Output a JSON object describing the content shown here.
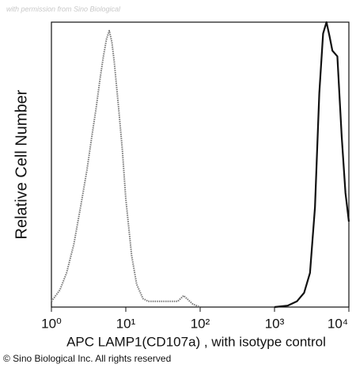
{
  "chart_data": {
    "type": "line",
    "watermark": "with permission from Sino Biological",
    "xlabel": "APC LAMP1(CD107a) , with isotype control",
    "ylabel": "Relative Cell Number",
    "footer": "© Sino Biological Inc. All rights reserved",
    "xscale": "log",
    "xlim": [
      1,
      10000
    ],
    "xticks": [
      {
        "value": 1,
        "label": "10⁰"
      },
      {
        "value": 10,
        "label": "10¹"
      },
      {
        "value": 100,
        "label": "10²"
      },
      {
        "value": 1000,
        "label": "10³"
      },
      {
        "value": 10000,
        "label": "10⁴"
      }
    ],
    "ylim": [
      0,
      100
    ],
    "series": [
      {
        "color": "#777777",
        "style": "dotted",
        "x": [
          1,
          1.3,
          1.6,
          2,
          2.5,
          3,
          3.5,
          4,
          4.5,
          5,
          5.5,
          6,
          6.5,
          7,
          8,
          9,
          10,
          12,
          14,
          17,
          20,
          30,
          50,
          60,
          80,
          100
        ],
        "values": [
          2,
          6,
          12,
          22,
          36,
          48,
          60,
          70,
          80,
          88,
          94,
          97,
          93,
          86,
          70,
          55,
          38,
          18,
          8,
          3,
          2,
          2,
          2,
          4,
          1,
          0
        ]
      },
      {
        "color": "#111111",
        "style": "solid",
        "x": [
          1000,
          1500,
          2000,
          2500,
          3000,
          3500,
          4000,
          4500,
          5000,
          5500,
          6000,
          7000,
          8000,
          9000,
          10000
        ],
        "values": [
          0,
          0.5,
          2,
          5,
          12,
          35,
          75,
          96,
          100,
          95,
          90,
          88,
          60,
          40,
          30
        ]
      }
    ]
  }
}
